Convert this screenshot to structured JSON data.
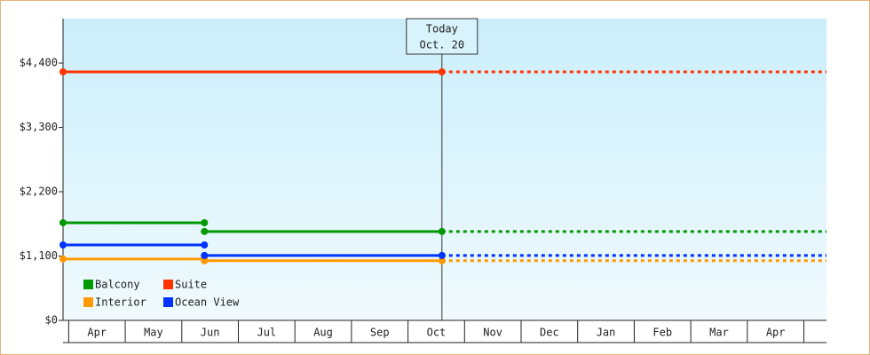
{
  "chart_data": {
    "type": "step-line",
    "categories": [
      "Apr",
      "May",
      "Jun",
      "Jul",
      "Aug",
      "Sep",
      "Oct",
      "Nov",
      "Dec",
      "Jan",
      "Feb",
      "Mar",
      "Apr"
    ],
    "xlim": [
      -0.1,
      13.4
    ],
    "ylim": [
      0,
      5160
    ],
    "yticks": [
      {
        "value": 0,
        "label": "$0"
      },
      {
        "value": 1100,
        "label": "$1,100"
      },
      {
        "value": 2200,
        "label": "$2,200"
      },
      {
        "value": 3300,
        "label": "$3,300"
      },
      {
        "value": 4400,
        "label": "$4,400"
      }
    ],
    "today": {
      "x": 6.6,
      "label": "Today",
      "date": "Oct. 20"
    },
    "series": [
      {
        "name": "Balcony",
        "color": "#009900",
        "x": [
          -0.1,
          2.4,
          2.4,
          2.4,
          6.6
        ],
        "values": [
          1670,
          1670,
          null,
          1520,
          1520
        ]
      },
      {
        "name": "Suite",
        "color": "#ff3300",
        "x": [
          -0.1,
          6.6
        ],
        "values": [
          4250,
          4250
        ]
      },
      {
        "name": "Interior",
        "color": "#ff9900",
        "x": [
          -0.1,
          2.4,
          2.4,
          2.4,
          6.6
        ],
        "values": [
          1050,
          1050,
          null,
          1020,
          1020
        ]
      },
      {
        "name": "Ocean View",
        "color": "#0033ff",
        "x": [
          -0.1,
          2.4,
          2.4,
          2.4,
          6.6
        ],
        "values": [
          1290,
          1290,
          null,
          1110,
          1110
        ]
      }
    ]
  }
}
